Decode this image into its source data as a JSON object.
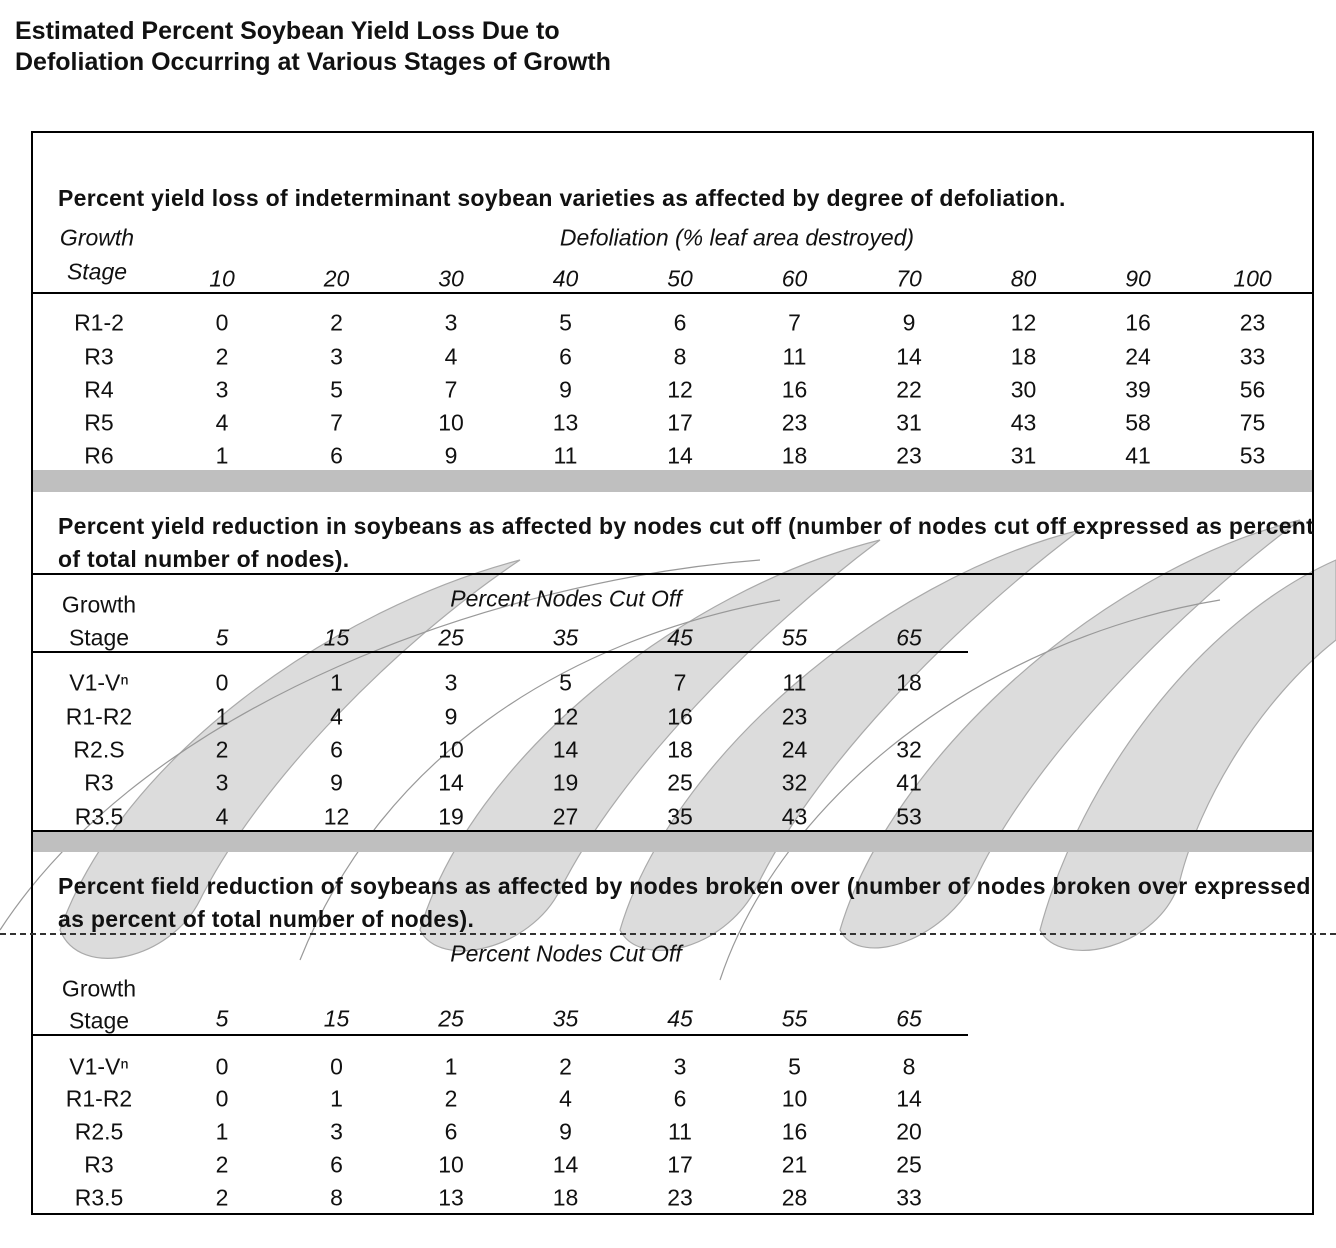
{
  "title": "Estimated Percent Soybean Yield Loss Due to Defoliation Occurring at Various Stages of Growth",
  "sections": [
    {
      "heading": "Percent yield loss of indeterminant soybean varieties as affected by degree of defoliation.",
      "stage_label_1": "Growth",
      "stage_label_2": "Stage",
      "column_group_label": "Defoliation (% leaf area destroyed)",
      "columns": [
        "10",
        "20",
        "30",
        "40",
        "50",
        "60",
        "70",
        "80",
        "90",
        "100"
      ],
      "rows": [
        {
          "stage": "R1-2",
          "values": [
            "0",
            "2",
            "3",
            "5",
            "6",
            "7",
            "9",
            "12",
            "16",
            "23"
          ]
        },
        {
          "stage": "R3",
          "values": [
            "2",
            "3",
            "4",
            "6",
            "8",
            "11",
            "14",
            "18",
            "24",
            "33"
          ]
        },
        {
          "stage": "R4",
          "values": [
            "3",
            "5",
            "7",
            "9",
            "12",
            "16",
            "22",
            "30",
            "39",
            "56"
          ]
        },
        {
          "stage": "R5",
          "values": [
            "4",
            "7",
            "10",
            "13",
            "17",
            "23",
            "31",
            "43",
            "58",
            "75"
          ]
        },
        {
          "stage": "R6",
          "values": [
            "1",
            "6",
            "9",
            "11",
            "14",
            "18",
            "23",
            "31",
            "41",
            "53"
          ]
        }
      ]
    },
    {
      "heading": "Percent yield reduction in soybeans as affected by nodes cut off (number of nodes cut off expressed as percent of total number of nodes).",
      "stage_label_1": "Growth",
      "stage_label_2": "Stage",
      "column_group_label": "Percent Nodes Cut Off",
      "columns": [
        "5",
        "15",
        "25",
        "35",
        "45",
        "55",
        "65"
      ],
      "rows": [
        {
          "stage": "V1-Vⁿ",
          "values": [
            "0",
            "1",
            "3",
            "5",
            "7",
            "11",
            "18"
          ]
        },
        {
          "stage": "R1-R2",
          "values": [
            "1",
            "4",
            "9",
            "12",
            "16",
            "23",
            ""
          ]
        },
        {
          "stage": "R2.S",
          "values": [
            "2",
            "6",
            "10",
            "14",
            "18",
            "24",
            "32"
          ]
        },
        {
          "stage": "R3",
          "values": [
            "3",
            "9",
            "14",
            "19",
            "25",
            "32",
            "41"
          ]
        },
        {
          "stage": "R3.5",
          "values": [
            "4",
            "12",
            "19",
            "27",
            "35",
            "43",
            "53"
          ]
        }
      ]
    },
    {
      "heading": "Percent field reduction of soybeans as affected by nodes broken over (number of nodes broken over expressed as percent of total number of nodes).",
      "stage_label_1": "Growth",
      "stage_label_2": "Stage",
      "column_group_label": "Percent Nodes Cut Off",
      "columns": [
        "5",
        "15",
        "25",
        "35",
        "45",
        "55",
        "65"
      ],
      "rows": [
        {
          "stage": "V1-Vⁿ",
          "values": [
            "0",
            "0",
            "1",
            "2",
            "3",
            "5",
            "8"
          ]
        },
        {
          "stage": "R1-R2",
          "values": [
            "0",
            "1",
            "2",
            "4",
            "6",
            "10",
            "14"
          ]
        },
        {
          "stage": "R2.5",
          "values": [
            "1",
            "3",
            "6",
            "9",
            "11",
            "16",
            "20"
          ]
        },
        {
          "stage": "R3",
          "values": [
            "2",
            "6",
            "10",
            "14",
            "17",
            "21",
            "25"
          ]
        },
        {
          "stage": "R3.5",
          "values": [
            "2",
            "8",
            "13",
            "18",
            "23",
            "28",
            "33"
          ]
        }
      ]
    }
  ],
  "colors": {
    "band": "#bfbfbf",
    "watermark": "#d9d9d9"
  }
}
